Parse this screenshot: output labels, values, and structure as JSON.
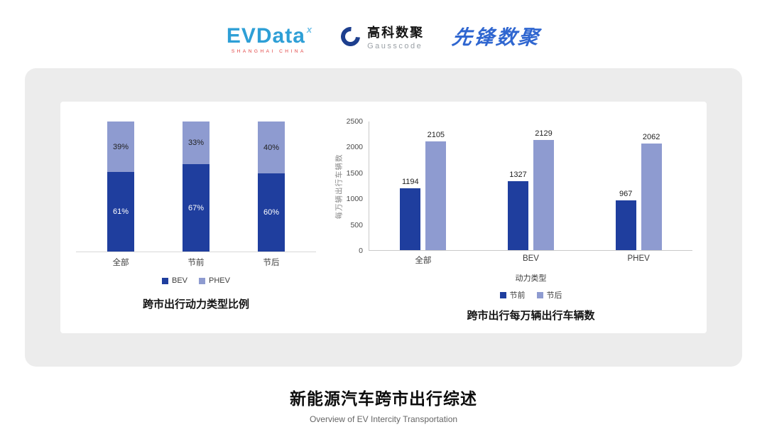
{
  "header": {
    "evdata": {
      "name": "EVData",
      "sup": "x",
      "sub": "SHANGHAI CHINA"
    },
    "gausscode": {
      "cn": "高科数聚",
      "en": "Gausscode"
    },
    "pioneer": "先锋数聚"
  },
  "colors": {
    "primary": "#1f3e9e",
    "secondary": "#8e9bd0",
    "panel_bg": "#ececec"
  },
  "chart_data": [
    {
      "type": "bar",
      "subtype": "stacked-percent",
      "title": "跨市出行动力类型比例",
      "categories": [
        "全部",
        "节前",
        "节后"
      ],
      "series": [
        {
          "name": "BEV",
          "values": [
            61,
            67,
            60
          ],
          "color": "#1f3e9e"
        },
        {
          "name": "PHEV",
          "values": [
            39,
            33,
            40
          ],
          "color": "#8e9bd0"
        }
      ],
      "unit": "%",
      "ylim": [
        0,
        100
      ],
      "legend_position": "bottom",
      "grid": false
    },
    {
      "type": "bar",
      "subtype": "grouped",
      "title": "跨市出行每万辆出行车辆数",
      "categories": [
        "全部",
        "BEV",
        "PHEV"
      ],
      "xlabel": "动力类型",
      "ylabel": "每万辆出行车辆数",
      "ylim": [
        0,
        2500
      ],
      "yticks": [
        0,
        500,
        1000,
        1500,
        2000,
        2500
      ],
      "series": [
        {
          "name": "节前",
          "values": [
            1194,
            1327,
            967
          ],
          "color": "#1f3e9e"
        },
        {
          "name": "节后",
          "values": [
            2105,
            2129,
            2062
          ],
          "color": "#8e9bd0"
        }
      ],
      "legend_position": "bottom",
      "grid": false
    }
  ],
  "footer": {
    "title": "新能源汽车跨市出行综述",
    "subtitle": "Overview of EV Intercity Transportation"
  }
}
